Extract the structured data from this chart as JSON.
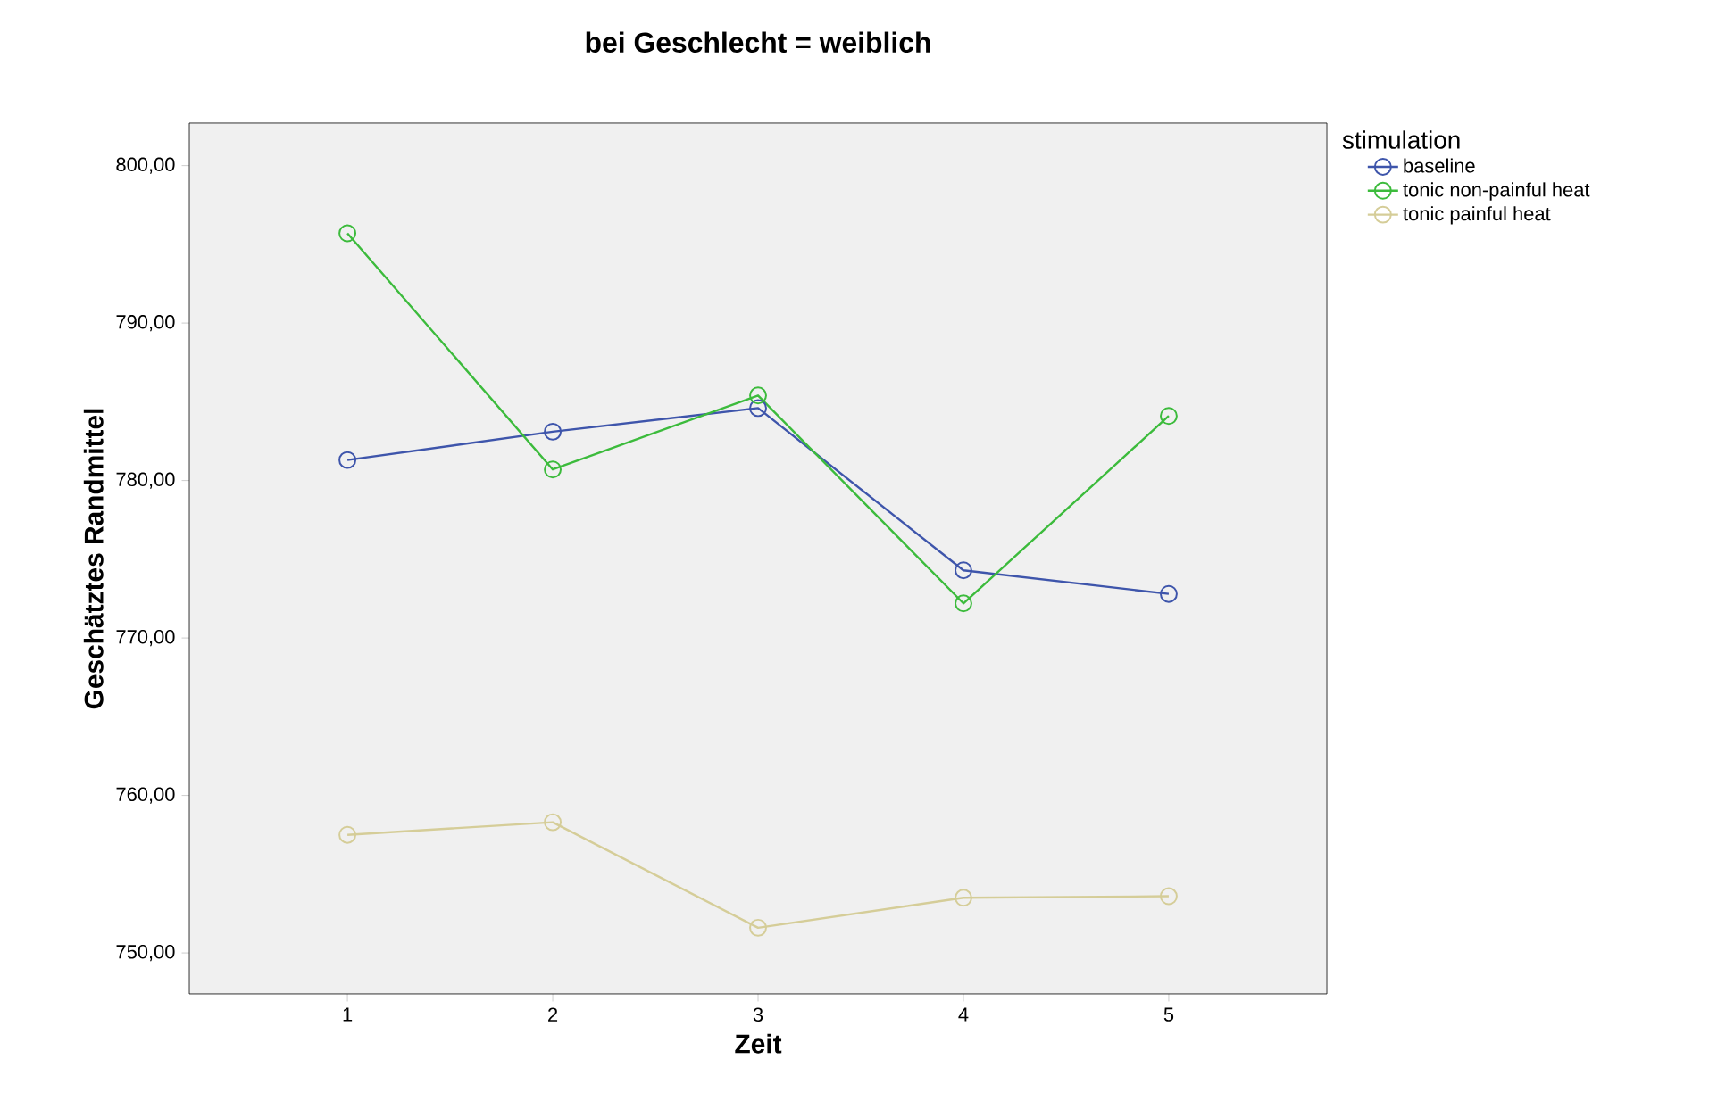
{
  "chart_data": {
    "type": "line",
    "title": "bei Geschlecht = weiblich",
    "xlabel": "Zeit",
    "ylabel": "Geschätztes Randmittel",
    "legend_title": "stimulation",
    "categories": [
      "1",
      "2",
      "3",
      "4",
      "5"
    ],
    "series": [
      {
        "name": "baseline",
        "color": "#3e55ab",
        "values": [
          781.3,
          783.1,
          784.6,
          774.3,
          772.8
        ]
      },
      {
        "name": "tonic non-painful heat",
        "color": "#3cbb3c",
        "values": [
          795.7,
          780.7,
          785.4,
          772.2,
          784.1
        ]
      },
      {
        "name": "tonic painful heat",
        "color": "#d5cd98",
        "values": [
          757.5,
          758.3,
          751.6,
          753.5,
          753.6
        ]
      }
    ],
    "ylim": [
      747.4,
      802.7
    ],
    "yticks": [
      {
        "value": 750,
        "label": "750,00"
      },
      {
        "value": 760,
        "label": "760,00"
      },
      {
        "value": 770,
        "label": "770,00"
      },
      {
        "value": 780,
        "label": "780,00"
      },
      {
        "value": 790,
        "label": "790,00"
      },
      {
        "value": 800,
        "label": "800,00"
      }
    ],
    "grid": false,
    "legend": "right",
    "marker": "circle",
    "line_style": "solid"
  }
}
